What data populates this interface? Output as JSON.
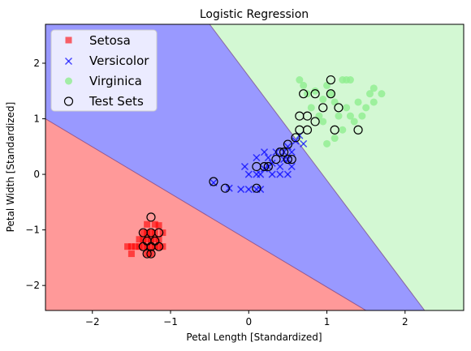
{
  "chart_data": {
    "type": "scatter",
    "title": "Logistic Regression",
    "xlabel": "Petal Length [Standardized]",
    "ylabel": "Petal Width [Standardized]",
    "xlim": [
      -2.6,
      2.75
    ],
    "ylim": [
      -2.45,
      2.7
    ],
    "x_ticks": [
      -2,
      -1,
      0,
      1,
      2
    ],
    "x_tick_labels": [
      "−2",
      "−1",
      "0",
      "1",
      "2"
    ],
    "y_ticks": [
      -2,
      -1,
      0,
      1,
      2
    ],
    "y_tick_labels": [
      "−2",
      "−1",
      "0",
      "1",
      "2"
    ],
    "grid": false,
    "legend_position": "top-left",
    "regions": [
      {
        "class": "Setosa",
        "color": "#ff0000",
        "opacity": 0.4
      },
      {
        "class": "Versicolor",
        "color": "#0000ff",
        "opacity": 0.4
      },
      {
        "class": "Virginica",
        "color": "#90ee90",
        "opacity": 0.4
      }
    ],
    "decision_boundaries": [
      {
        "between": [
          "Setosa",
          "Versicolor"
        ],
        "points": [
          [
            -2.6,
            1.0
          ],
          [
            1.5,
            -2.45
          ]
        ]
      },
      {
        "between": [
          "Versicolor",
          "Virginica"
        ],
        "points": [
          [
            -0.5,
            2.7
          ],
          [
            2.25,
            -2.45
          ]
        ]
      }
    ],
    "series": [
      {
        "name": "Setosa",
        "marker": "s",
        "color": "#ff0000",
        "points": [
          [
            -1.55,
            -1.3
          ],
          [
            -1.5,
            -1.3
          ],
          [
            -1.45,
            -1.3
          ],
          [
            -1.4,
            -1.3
          ],
          [
            -1.35,
            -1.3
          ],
          [
            -1.3,
            -1.3
          ],
          [
            -1.25,
            -1.3
          ],
          [
            -1.2,
            -1.3
          ],
          [
            -1.15,
            -1.3
          ],
          [
            -1.1,
            -1.3
          ],
          [
            -1.4,
            -1.17
          ],
          [
            -1.35,
            -1.17
          ],
          [
            -1.3,
            -1.17
          ],
          [
            -1.25,
            -1.17
          ],
          [
            -1.2,
            -1.17
          ],
          [
            -1.15,
            -1.17
          ],
          [
            -1.35,
            -1.05
          ],
          [
            -1.3,
            -1.05
          ],
          [
            -1.25,
            -1.05
          ],
          [
            -1.2,
            -1.05
          ],
          [
            -1.1,
            -1.05
          ],
          [
            -1.5,
            -1.43
          ],
          [
            -1.3,
            -1.43
          ],
          [
            -1.25,
            -1.43
          ],
          [
            -1.2,
            -0.9
          ],
          [
            -1.3,
            -0.9
          ],
          [
            -1.15,
            -0.92
          ]
        ]
      },
      {
        "name": "Versicolor",
        "marker": "x",
        "color": "#0000ff",
        "points": [
          [
            -0.45,
            -0.15
          ],
          [
            -0.25,
            -0.25
          ],
          [
            -0.1,
            -0.27
          ],
          [
            0.0,
            -0.27
          ],
          [
            0.1,
            -0.27
          ],
          [
            0.15,
            -0.27
          ],
          [
            -0.05,
            0.14
          ],
          [
            0.1,
            0.0
          ],
          [
            0.15,
            0.0
          ],
          [
            0.2,
            0.1
          ],
          [
            0.25,
            0.14
          ],
          [
            0.3,
            0.2
          ],
          [
            0.3,
            0.0
          ],
          [
            0.4,
            0.0
          ],
          [
            0.4,
            0.14
          ],
          [
            0.45,
            0.27
          ],
          [
            0.5,
            0.27
          ],
          [
            0.45,
            0.4
          ],
          [
            0.5,
            0.5
          ],
          [
            0.55,
            0.4
          ],
          [
            0.6,
            0.6
          ],
          [
            0.65,
            0.7
          ],
          [
            0.7,
            0.55
          ],
          [
            0.35,
            0.4
          ],
          [
            0.25,
            0.3
          ],
          [
            0.1,
            0.3
          ],
          [
            0.0,
            0.0
          ],
          [
            0.2,
            0.4
          ],
          [
            0.5,
            0.0
          ],
          [
            0.55,
            0.14
          ]
        ]
      },
      {
        "name": "Virginica",
        "marker": "o",
        "color": "#90ee90",
        "points": [
          [
            0.7,
            1.6
          ],
          [
            0.75,
            1.45
          ],
          [
            0.8,
            1.2
          ],
          [
            0.85,
            1.5
          ],
          [
            0.9,
            1.05
          ],
          [
            0.95,
            1.35
          ],
          [
            1.0,
            1.6
          ],
          [
            1.05,
            1.45
          ],
          [
            1.1,
            1.3
          ],
          [
            1.15,
            1.05
          ],
          [
            1.2,
            0.8
          ],
          [
            1.25,
            1.2
          ],
          [
            1.3,
            1.05
          ],
          [
            1.35,
            0.95
          ],
          [
            1.4,
            1.3
          ],
          [
            1.5,
            1.2
          ],
          [
            1.55,
            1.45
          ],
          [
            1.6,
            1.3
          ],
          [
            1.7,
            1.45
          ],
          [
            1.2,
            1.7
          ],
          [
            1.25,
            1.7
          ],
          [
            1.3,
            1.7
          ],
          [
            1.0,
            0.55
          ],
          [
            0.95,
            0.95
          ],
          [
            0.65,
            1.7
          ],
          [
            1.1,
            0.65
          ],
          [
            1.45,
            1.05
          ],
          [
            1.6,
            1.55
          ]
        ]
      }
    ],
    "test_sets": {
      "name": "Test Sets",
      "marker": "o",
      "points": [
        [
          -1.25,
          -0.77
        ],
        [
          -1.35,
          -1.05
        ],
        [
          -1.25,
          -1.05
        ],
        [
          -1.15,
          -1.05
        ],
        [
          -1.3,
          -1.2
        ],
        [
          -1.2,
          -1.2
        ],
        [
          -1.35,
          -1.3
        ],
        [
          -1.25,
          -1.3
        ],
        [
          -1.15,
          -1.3
        ],
        [
          -1.3,
          -1.43
        ],
        [
          -1.25,
          -1.43
        ],
        [
          -0.45,
          -0.13
        ],
        [
          -0.3,
          -0.25
        ],
        [
          0.1,
          -0.25
        ],
        [
          0.1,
          0.14
        ],
        [
          0.2,
          0.14
        ],
        [
          0.25,
          0.14
        ],
        [
          0.35,
          0.27
        ],
        [
          0.4,
          0.4
        ],
        [
          0.45,
          0.4
        ],
        [
          0.5,
          0.54
        ],
        [
          0.5,
          0.27
        ],
        [
          0.55,
          0.27
        ],
        [
          0.6,
          0.66
        ],
        [
          0.65,
          0.8
        ],
        [
          0.75,
          0.8
        ],
        [
          0.65,
          1.05
        ],
        [
          0.75,
          1.05
        ],
        [
          0.85,
          0.95
        ],
        [
          0.7,
          1.45
        ],
        [
          0.85,
          1.45
        ],
        [
          0.95,
          1.2
        ],
        [
          1.05,
          1.45
        ],
        [
          1.05,
          1.7
        ],
        [
          1.15,
          1.2
        ],
        [
          1.1,
          0.8
        ],
        [
          1.4,
          0.8
        ]
      ]
    },
    "legend": [
      "Setosa",
      "Versicolor",
      "Virginica",
      "Test Sets"
    ]
  }
}
